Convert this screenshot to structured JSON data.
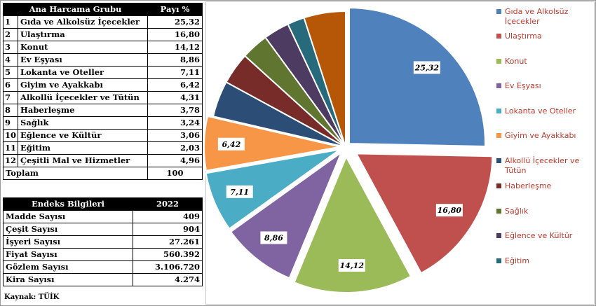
{
  "table1": {
    "header": {
      "label": "Ana Harcama Grubu",
      "value": "Payı %"
    },
    "rows": [
      {
        "no": "1",
        "label": "Gıda ve Alkolsüz İçecekler",
        "value": "25,32"
      },
      {
        "no": "2",
        "label": "Ulaştırma",
        "value": "16,80"
      },
      {
        "no": "3",
        "label": "Konut",
        "value": "14,12"
      },
      {
        "no": "4",
        "label": "Ev Eşyası",
        "value": "8,86"
      },
      {
        "no": "5",
        "label": "Lokanta ve Oteller",
        "value": "7,11"
      },
      {
        "no": "6",
        "label": "Giyim ve Ayakkabı",
        "value": "6,42"
      },
      {
        "no": "7",
        "label": "Alkollü İçecekler ve Tütün",
        "value": "4,31"
      },
      {
        "no": "8",
        "label": "Haberleşme",
        "value": "3,78"
      },
      {
        "no": "9",
        "label": "Sağlık",
        "value": "3,24"
      },
      {
        "no": "10",
        "label": "Eğlence ve Kültür",
        "value": "3,06"
      },
      {
        "no": "11",
        "label": "Eğitim",
        "value": "2,03"
      },
      {
        "no": "12",
        "label": "Çeşitli Mal ve Hizmetler",
        "value": "4,96"
      }
    ],
    "total": {
      "label": "Toplam",
      "value": "100"
    }
  },
  "table2": {
    "header": {
      "label": "Endeks Bilgileri",
      "value": "2022"
    },
    "rows": [
      {
        "label": "Madde Sayısı",
        "value": "409"
      },
      {
        "label": "Çeşit Sayısı",
        "value": "904"
      },
      {
        "label": "İşyeri Sayısı",
        "value": "27.261"
      },
      {
        "label": "Fiyat Sayısı",
        "value": "560.392"
      },
      {
        "label": "Gözlem Sayısı",
        "value": "3.106.720"
      },
      {
        "label": "Kira Sayısı",
        "value": "4.274"
      }
    ]
  },
  "source": "Kaynak: TÜİK",
  "chart_data": {
    "type": "pie",
    "categories": [
      "Gıda ve Alkolsüz İçecekler",
      "Ulaştırma",
      "Konut",
      "Ev Eşyası",
      "Lokanta ve Oteller",
      "Giyim ve Ayakkabı",
      "Alkollü İçecekler ve Tütün",
      "Haberleşme",
      "Sağlık",
      "Eğlence ve Kültür",
      "Eğitim",
      "Çeşitli Mal ve Hizmetler"
    ],
    "values": [
      25.32,
      16.8,
      14.12,
      8.86,
      7.11,
      6.42,
      4.31,
      3.78,
      3.24,
      3.06,
      2.03,
      4.96
    ],
    "data_labels": [
      "25,32",
      "16,80",
      "14,12",
      "8,86",
      "7,11",
      "6,42",
      "",
      "",
      "",
      "",
      "",
      ""
    ],
    "colors": [
      "#4f81bd",
      "#c0504d",
      "#9bbb59",
      "#8064a2",
      "#4bacc6",
      "#f79646",
      "#2c4d75",
      "#772c2a",
      "#5f7530",
      "#4d3b62",
      "#276a7c",
      "#b65708"
    ],
    "legend_items": [
      "Gıda ve Alkolsüz İçecekler",
      "Ulaştırma",
      "Konut",
      "Ev Eşyası",
      "Lokanta ve Oteller",
      "Giyim ve Ayakkabı",
      "Alkollü İçecekler ve Tütün",
      "Haberleşme",
      "Sağlık",
      "Eğlence ve Kültür",
      "Eğitim"
    ],
    "legend_placement": "right",
    "exploded": true
  }
}
